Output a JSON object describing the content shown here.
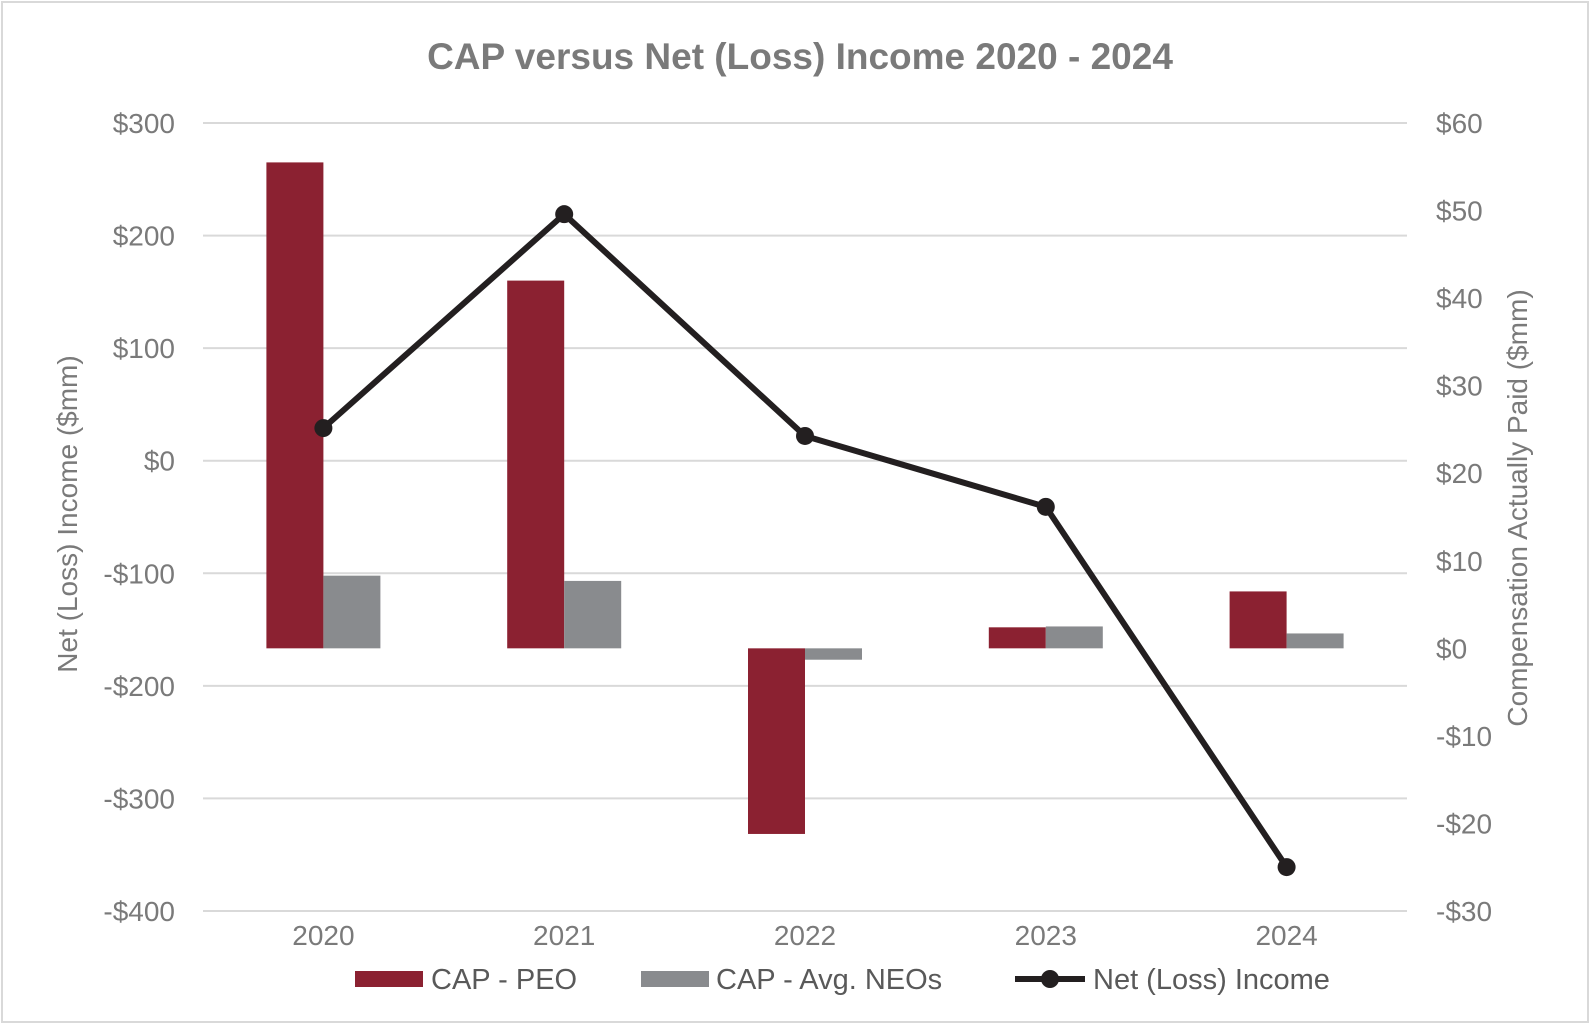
{
  "chart_data": {
    "type": "bar",
    "title": "CAP versus Net (Loss) Income 2020 - 2024",
    "categories": [
      "2020",
      "2021",
      "2022",
      "2023",
      "2024"
    ],
    "left_axis": {
      "label": "Net (Loss) Income ($mm)",
      "range": [
        -400,
        300
      ],
      "ticks": [
        300,
        200,
        100,
        0,
        -100,
        -200,
        -300,
        -400
      ],
      "tick_labels": [
        "$300",
        "$200",
        "$100",
        "$0",
        "-$100",
        "-$200",
        "-$300",
        "-$400"
      ]
    },
    "right_axis": {
      "label": "Compensation Actually Paid ($mm)",
      "range": [
        -30,
        60
      ],
      "ticks": [
        60,
        50,
        40,
        30,
        20,
        10,
        0,
        -10,
        -20,
        -30
      ],
      "tick_labels": [
        "$60",
        "$50",
        "$40",
        "$30",
        "$20",
        "$10",
        "$0",
        "-$10",
        "-$20",
        "-$30"
      ]
    },
    "series": [
      {
        "name": "CAP - PEO",
        "kind": "bar",
        "axis": "right",
        "color": "#8b2131",
        "values": [
          55.5,
          42,
          -21.2,
          2.4,
          6.5
        ]
      },
      {
        "name": "CAP - Avg. NEOs",
        "kind": "bar",
        "axis": "right",
        "color": "#898b8e",
        "values": [
          8.3,
          7.7,
          -1.3,
          2.5,
          1.7
        ]
      },
      {
        "name": "Net (Loss) Income",
        "kind": "line",
        "axis": "left",
        "color": "#231f20",
        "values": [
          29,
          219,
          22,
          -41,
          -361
        ]
      }
    ],
    "grid": true,
    "legend_position": "bottom"
  }
}
